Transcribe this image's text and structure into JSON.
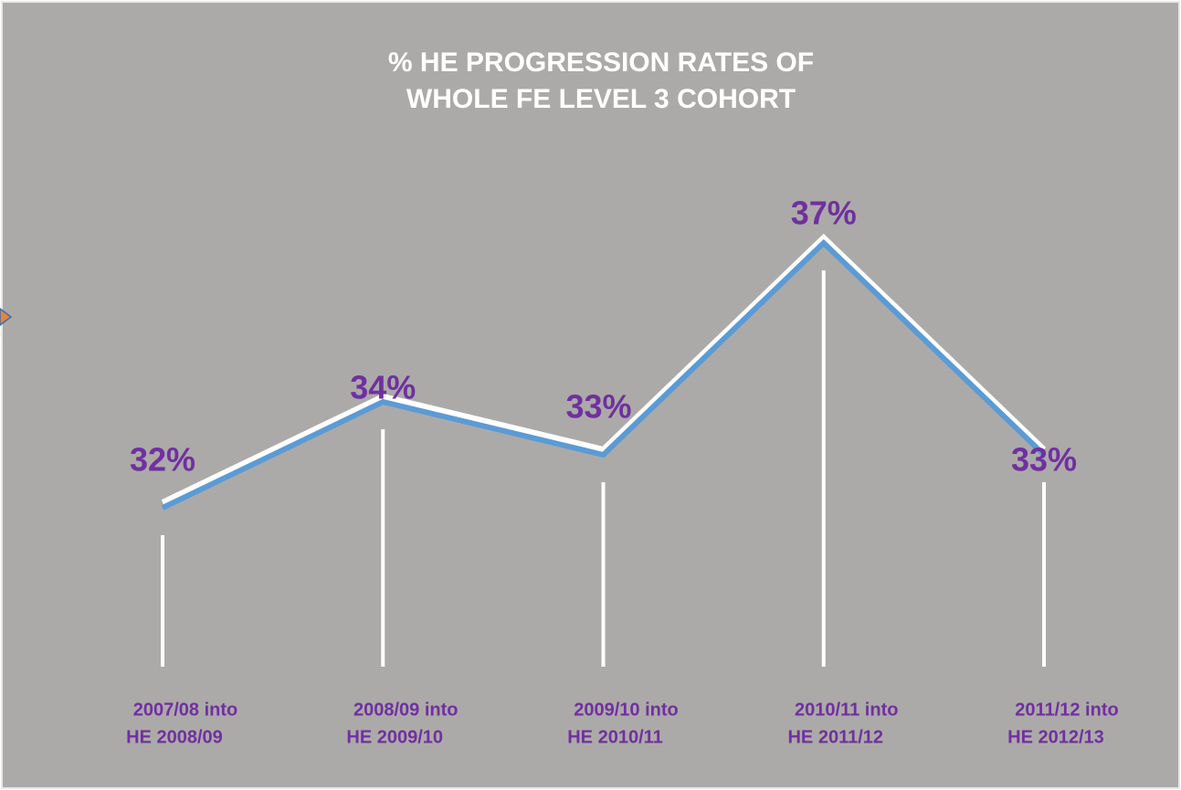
{
  "chart_data": {
    "type": "line",
    "title": [
      "%  HE  PROGRESSION RATES OF",
      "WHOLE FE  LEVEL 3 COHORT"
    ],
    "categories": [
      [
        "2007/08 into",
        "HE 2008/09"
      ],
      [
        "2008/09 into",
        "HE 2009/10"
      ],
      [
        "2009/10 into",
        "HE 2010/11"
      ],
      [
        "2010/11 into",
        "HE 2011/12"
      ],
      [
        "2011/12  into",
        "HE 2012/13"
      ]
    ],
    "values": [
      32,
      34,
      33,
      37,
      33
    ],
    "value_labels": [
      "32%",
      "34%",
      "33%",
      "37%",
      "33%"
    ],
    "color": "#5b9bd5",
    "label_color": "#7030a0",
    "ylim": [
      29,
      39
    ]
  }
}
